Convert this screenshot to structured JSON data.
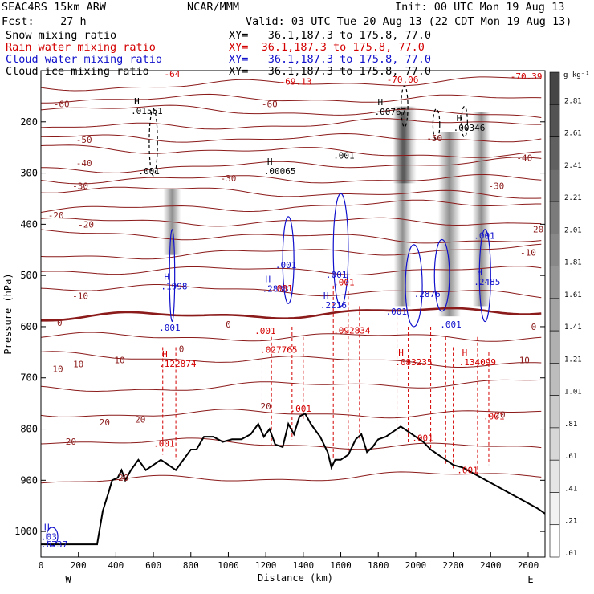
{
  "header": {
    "model": "SEAC4RS 15km ARW",
    "org": "NCAR/MMM",
    "init": "Init: 00 UTC Mon 19 Aug 13",
    "fcst": "Fcst:    27 h",
    "valid": "Valid: 03 UTC Tue 20 Aug 13 (22 CDT Mon 19 Aug 13)",
    "fields": [
      {
        "name": "Snow mixing ratio",
        "xy": "XY=   36.1,187.3 to 175.8, 77.0",
        "color": "#000000"
      },
      {
        "name": "Rain water mixing ratio",
        "xy": "XY=  36.1,187.3 to 175.8, 77.0",
        "color": "#d40000"
      },
      {
        "name": "Cloud water mixing ratio",
        "xy": "XY=   36.1,187.3 to 175.8, 77.0",
        "color": "#1010cc"
      },
      {
        "name": "Cloud ice mixing ratio",
        "xy": "XY=   36.1,187.3 to 175.8, 77.0",
        "color": "#000000"
      }
    ]
  },
  "chart_data": {
    "type": "cross-section",
    "xlabel": "Distance (km)",
    "ylabel": "Pressure (hPa)",
    "xlim": [
      0,
      2690
    ],
    "ylim": [
      1050,
      100
    ],
    "x_ticks": [
      0,
      200,
      400,
      600,
      800,
      1000,
      1200,
      1400,
      1600,
      1800,
      2000,
      2200,
      2400,
      2600
    ],
    "y_ticks": [
      200,
      300,
      400,
      500,
      600,
      700,
      800,
      900,
      1000
    ],
    "endpoints": {
      "left": "W",
      "right": "E"
    },
    "colorbar": {
      "unit": "g kg⁻¹",
      "labels": [
        "2.81",
        "2.61",
        "2.41",
        "2.21",
        "2.01",
        "1.81",
        "1.61",
        "1.41",
        "1.21",
        "1.01",
        ".81",
        ".61",
        ".41",
        ".21",
        ".01"
      ]
    },
    "temperature_labels": [
      {
        "x": 110,
        "p": 165,
        "text": "-60"
      },
      {
        "x": 1220,
        "p": 165,
        "text": "-60"
      },
      {
        "x": 230,
        "p": 235,
        "text": "-50"
      },
      {
        "x": 2100,
        "p": 232,
        "text": "-50"
      },
      {
        "x": 230,
        "p": 280,
        "text": "-40"
      },
      {
        "x": 2580,
        "p": 270,
        "text": "-40"
      },
      {
        "x": 210,
        "p": 325,
        "text": "-30"
      },
      {
        "x": 1000,
        "p": 310,
        "text": "-30"
      },
      {
        "x": 2430,
        "p": 325,
        "text": "-30"
      },
      {
        "x": 80,
        "p": 382,
        "text": "-20"
      },
      {
        "x": 240,
        "p": 400,
        "text": "-20"
      },
      {
        "x": 2640,
        "p": 410,
        "text": "-20"
      },
      {
        "x": 2600,
        "p": 455,
        "text": "-10"
      },
      {
        "x": 210,
        "p": 540,
        "text": "-10"
      },
      {
        "x": 100,
        "p": 592,
        "text": "0"
      },
      {
        "x": 2630,
        "p": 600,
        "text": "0"
      },
      {
        "x": 1000,
        "p": 595,
        "text": "0"
      },
      {
        "x": 750,
        "p": 643,
        "text": "0"
      },
      {
        "x": 2580,
        "p": 665,
        "text": "10"
      },
      {
        "x": 420,
        "p": 665,
        "text": "10"
      },
      {
        "x": 90,
        "p": 682,
        "text": "10"
      },
      {
        "x": 200,
        "p": 673,
        "text": "10"
      },
      {
        "x": 1200,
        "p": 755,
        "text": "20"
      },
      {
        "x": 2450,
        "p": 772,
        "text": "20"
      },
      {
        "x": 530,
        "p": 781,
        "text": "20"
      },
      {
        "x": 340,
        "p": 787,
        "text": "20"
      },
      {
        "x": 160,
        "p": 824,
        "text": "20"
      },
      {
        "x": 440,
        "p": 895,
        "text": "20"
      }
    ],
    "top_labels": [
      {
        "x": 1360,
        "p": 121,
        "text": "-69.13",
        "color": "#d40000"
      },
      {
        "x": 1930,
        "p": 117,
        "text": "-70.06",
        "color": "#d40000"
      },
      {
        "x": 2590,
        "p": 111,
        "text": "-70.39",
        "color": "#d40000"
      },
      {
        "x": 700,
        "p": 106,
        "text": "-64",
        "color": "#d40000"
      }
    ],
    "maxima": [
      {
        "x": 540,
        "p": 178,
        "h": true,
        "text": ".01561",
        "color": "#000000"
      },
      {
        "x": 580,
        "p": 296,
        "h": false,
        "text": ".001",
        "color": "#000000"
      },
      {
        "x": 1250,
        "p": 296,
        "h": true,
        "text": ".00065",
        "color": "#000000"
      },
      {
        "x": 1620,
        "p": 265,
        "h": false,
        "text": ".001",
        "color": "#000000"
      },
      {
        "x": 1840,
        "p": 180,
        "h": true,
        "text": ".00767",
        "color": "#000000"
      },
      {
        "x": 2260,
        "p": 211,
        "h": true,
        "text": ".00346",
        "color": "#000000"
      },
      {
        "x": 700,
        "p": 521,
        "h": true,
        "text": ".1998",
        "color": "#1010cc"
      },
      {
        "x": 690,
        "p": 602,
        "h": false,
        "text": ".001",
        "color": "#1010cc"
      },
      {
        "x": 1310,
        "p": 479,
        "h": false,
        "text": ".001",
        "color": "#1010cc"
      },
      {
        "x": 1240,
        "p": 526,
        "h": true,
        "text": ".2833",
        "color": "#1010cc"
      },
      {
        "x": 1580,
        "p": 498,
        "h": false,
        "text": ".001",
        "color": "#1010cc"
      },
      {
        "x": 1550,
        "p": 558,
        "h": true,
        "text": ".2216",
        "color": "#1010cc"
      },
      {
        "x": 1900,
        "p": 570,
        "h": false,
        "text": ".001",
        "color": "#1010cc"
      },
      {
        "x": 2050,
        "p": 536,
        "h": false,
        "text": ".2876",
        "color": "#1010cc"
      },
      {
        "x": 2370,
        "p": 512,
        "h": true,
        "text": ".2485",
        "color": "#1010cc"
      },
      {
        "x": 2370,
        "p": 422,
        "h": false,
        "text": ".001",
        "color": "#1010cc"
      },
      {
        "x": 2190,
        "p": 595,
        "h": false,
        "text": ".001",
        "color": "#1010cc"
      },
      {
        "x": 690,
        "p": 672,
        "h": true,
        "text": ".122874",
        "color": "#d40000"
      },
      {
        "x": 1230,
        "p": 645,
        "h": false,
        "text": ".027765",
        "color": "#d40000"
      },
      {
        "x": 1620,
        "p": 607,
        "h": false,
        "text": ".092834",
        "color": "#d40000"
      },
      {
        "x": 1950,
        "p": 669,
        "h": true,
        "text": ".083235",
        "color": "#d40000"
      },
      {
        "x": 2290,
        "p": 669,
        "h": true,
        "text": ".134099",
        "color": "#d40000"
      },
      {
        "x": 1200,
        "p": 608,
        "h": false,
        "text": ".001",
        "color": "#d40000"
      },
      {
        "x": 1290,
        "p": 525,
        "h": false,
        "text": ".001",
        "color": "#d40000"
      },
      {
        "x": 1390,
        "p": 760,
        "h": false,
        "text": ".001",
        "color": "#d40000"
      },
      {
        "x": 1620,
        "p": 513,
        "h": false,
        "text": ".001",
        "color": "#d40000"
      },
      {
        "x": 2040,
        "p": 817,
        "h": false,
        "text": ".001",
        "color": "#d40000"
      },
      {
        "x": 2420,
        "p": 775,
        "h": false,
        "text": ".001",
        "color": "#d40000"
      },
      {
        "x": 2280,
        "p": 880,
        "h": false,
        "text": ".001",
        "color": "#d40000"
      },
      {
        "x": 660,
        "p": 828,
        "h": false,
        "text": ".001",
        "color": "#d40000"
      },
      {
        "x": 60,
        "p": 1010,
        "h": true,
        "text": ".03",
        "color": "#1010cc"
      },
      {
        "x": 60,
        "p": 1025,
        "h": false,
        "text": ".6737",
        "color": "#1010cc"
      }
    ],
    "terrain": [
      [
        0,
        1025
      ],
      [
        300,
        1025
      ],
      [
        330,
        960
      ],
      [
        360,
        925
      ],
      [
        380,
        900
      ],
      [
        410,
        895
      ],
      [
        430,
        880
      ],
      [
        450,
        900
      ],
      [
        480,
        880
      ],
      [
        520,
        860
      ],
      [
        560,
        880
      ],
      [
        600,
        870
      ],
      [
        640,
        860
      ],
      [
        680,
        870
      ],
      [
        720,
        880
      ],
      [
        760,
        860
      ],
      [
        800,
        840
      ],
      [
        830,
        840
      ],
      [
        870,
        815
      ],
      [
        920,
        815
      ],
      [
        970,
        825
      ],
      [
        1020,
        820
      ],
      [
        1070,
        820
      ],
      [
        1120,
        810
      ],
      [
        1160,
        790
      ],
      [
        1190,
        815
      ],
      [
        1220,
        800
      ],
      [
        1250,
        830
      ],
      [
        1290,
        835
      ],
      [
        1320,
        790
      ],
      [
        1350,
        810
      ],
      [
        1380,
        775
      ],
      [
        1410,
        770
      ],
      [
        1440,
        790
      ],
      [
        1460,
        800
      ],
      [
        1490,
        815
      ],
      [
        1530,
        845
      ],
      [
        1550,
        875
      ],
      [
        1570,
        860
      ],
      [
        1600,
        860
      ],
      [
        1640,
        850
      ],
      [
        1680,
        820
      ],
      [
        1710,
        810
      ],
      [
        1740,
        845
      ],
      [
        1770,
        835
      ],
      [
        1800,
        820
      ],
      [
        1840,
        815
      ],
      [
        1880,
        805
      ],
      [
        1920,
        795
      ],
      [
        1960,
        805
      ],
      [
        2000,
        815
      ],
      [
        2040,
        825
      ],
      [
        2080,
        840
      ],
      [
        2120,
        850
      ],
      [
        2160,
        860
      ],
      [
        2200,
        870
      ],
      [
        2250,
        875
      ],
      [
        2300,
        885
      ],
      [
        2350,
        895
      ],
      [
        2400,
        905
      ],
      [
        2450,
        915
      ],
      [
        2500,
        925
      ],
      [
        2550,
        935
      ],
      [
        2600,
        945
      ],
      [
        2650,
        955
      ],
      [
        2690,
        965
      ]
    ]
  }
}
